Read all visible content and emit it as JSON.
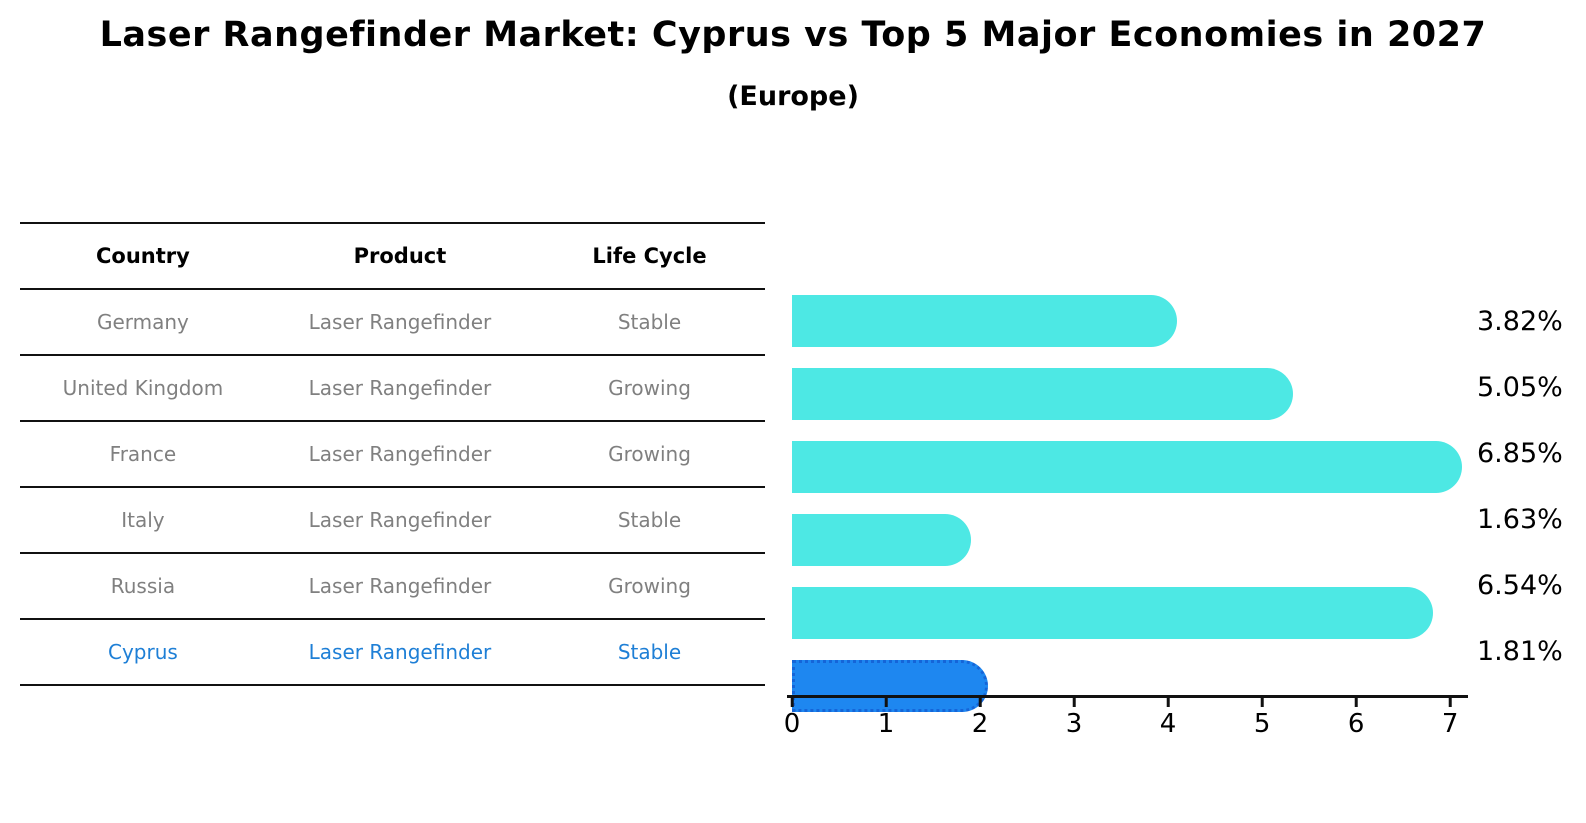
{
  "title": "Laser Rangefinder Market: Cyprus vs Top 5 Major Economies in 2027",
  "subtitle": "(Europe)",
  "table": {
    "headers": [
      "Country",
      "Product",
      "Life Cycle"
    ]
  },
  "rows": [
    {
      "country": "Germany",
      "product": "Laser Rangefinder",
      "life_cycle": "Stable",
      "value": 3.82,
      "value_label": "3.82%",
      "highlight": false
    },
    {
      "country": "United Kingdom",
      "product": "Laser Rangefinder",
      "life_cycle": "Growing",
      "value": 5.05,
      "value_label": "5.05%",
      "highlight": false
    },
    {
      "country": "France",
      "product": "Laser Rangefinder",
      "life_cycle": "Growing",
      "value": 6.85,
      "value_label": "6.85%",
      "highlight": false
    },
    {
      "country": "Italy",
      "product": "Laser Rangefinder",
      "life_cycle": "Stable",
      "value": 1.63,
      "value_label": "1.63%",
      "highlight": false
    },
    {
      "country": "Russia",
      "product": "Laser Rangefinder",
      "life_cycle": "Growing",
      "value": 6.54,
      "value_label": "6.54%",
      "highlight": false
    },
    {
      "country": "Cyprus",
      "product": "Laser Rangefinder",
      "life_cycle": "Stable",
      "value": 1.81,
      "value_label": "1.81%",
      "highlight": true
    }
  ],
  "chart_data": {
    "type": "bar",
    "orientation": "horizontal",
    "title": "Laser Rangefinder Market: Cyprus vs Top 5 Major Economies in 2027",
    "subtitle": "(Europe)",
    "categories": [
      "Germany",
      "United Kingdom",
      "France",
      "Italy",
      "Russia",
      "Cyprus"
    ],
    "values": [
      3.82,
      5.05,
      6.85,
      1.63,
      6.54,
      1.81
    ],
    "value_labels": [
      "3.82%",
      "5.05%",
      "6.85%",
      "1.63%",
      "6.54%",
      "1.81%"
    ],
    "xlabel": "",
    "ylabel": "",
    "xlim": [
      0,
      7.19
    ],
    "x_ticks": [
      0,
      1,
      2,
      3,
      4,
      5,
      6,
      7
    ],
    "grid": false,
    "legend": false,
    "highlight_index": 5
  },
  "colors": {
    "bar": "#4DE8E4",
    "highlight_bar": "#1E87F0",
    "highlight_bar_border": "#1565D8",
    "highlight_text": "#1E7FD6",
    "cell_text": "#808080",
    "header_text": "#000000",
    "axis": "#111111"
  }
}
